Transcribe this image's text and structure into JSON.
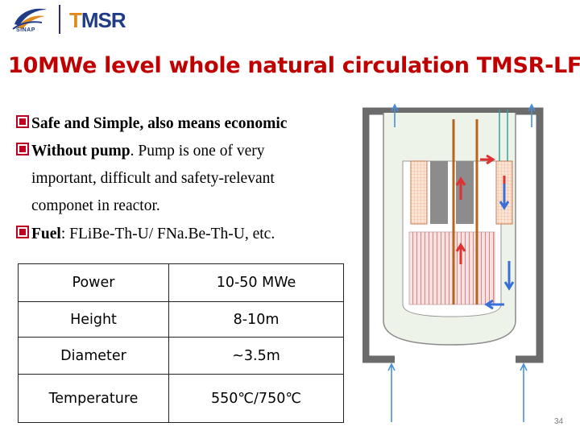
{
  "header": {
    "sinap_logo_text": "SINAP",
    "tmsr_logo_text": "TMSR"
  },
  "title": "10MWe level whole natural circulation TMSR-LF",
  "bullets": [
    {
      "lead": "Safe and Simple, also means economic",
      "rest": ""
    },
    {
      "lead": "Without pump",
      "rest": ". Pump is one of very"
    },
    {
      "line": "important, difficult and safety-relevant"
    },
    {
      "line": "componet in reactor."
    },
    {
      "lead": "Fuel",
      "rest": ": FLiBe-Th-U/ FNa.Be-Th-U, etc."
    }
  ],
  "table": {
    "rows": [
      {
        "param": "Power",
        "value": "10-50 MWe"
      },
      {
        "param": "Height",
        "value": "8-10m"
      },
      {
        "param": "Diameter",
        "value": "~3.5m"
      },
      {
        "param": "Temperature",
        "value": "550℃/750℃"
      }
    ]
  },
  "colors": {
    "title": "#c00000",
    "bullet_marker": "#c00020",
    "vessel_wall": "#6b6b6b",
    "core_fill": "#f6dcdc",
    "fuel_channel": "#e07878",
    "flow_arrow_hot": "#e03030",
    "flow_arrow_cold": "#3a6fd6"
  },
  "page_number": "34"
}
